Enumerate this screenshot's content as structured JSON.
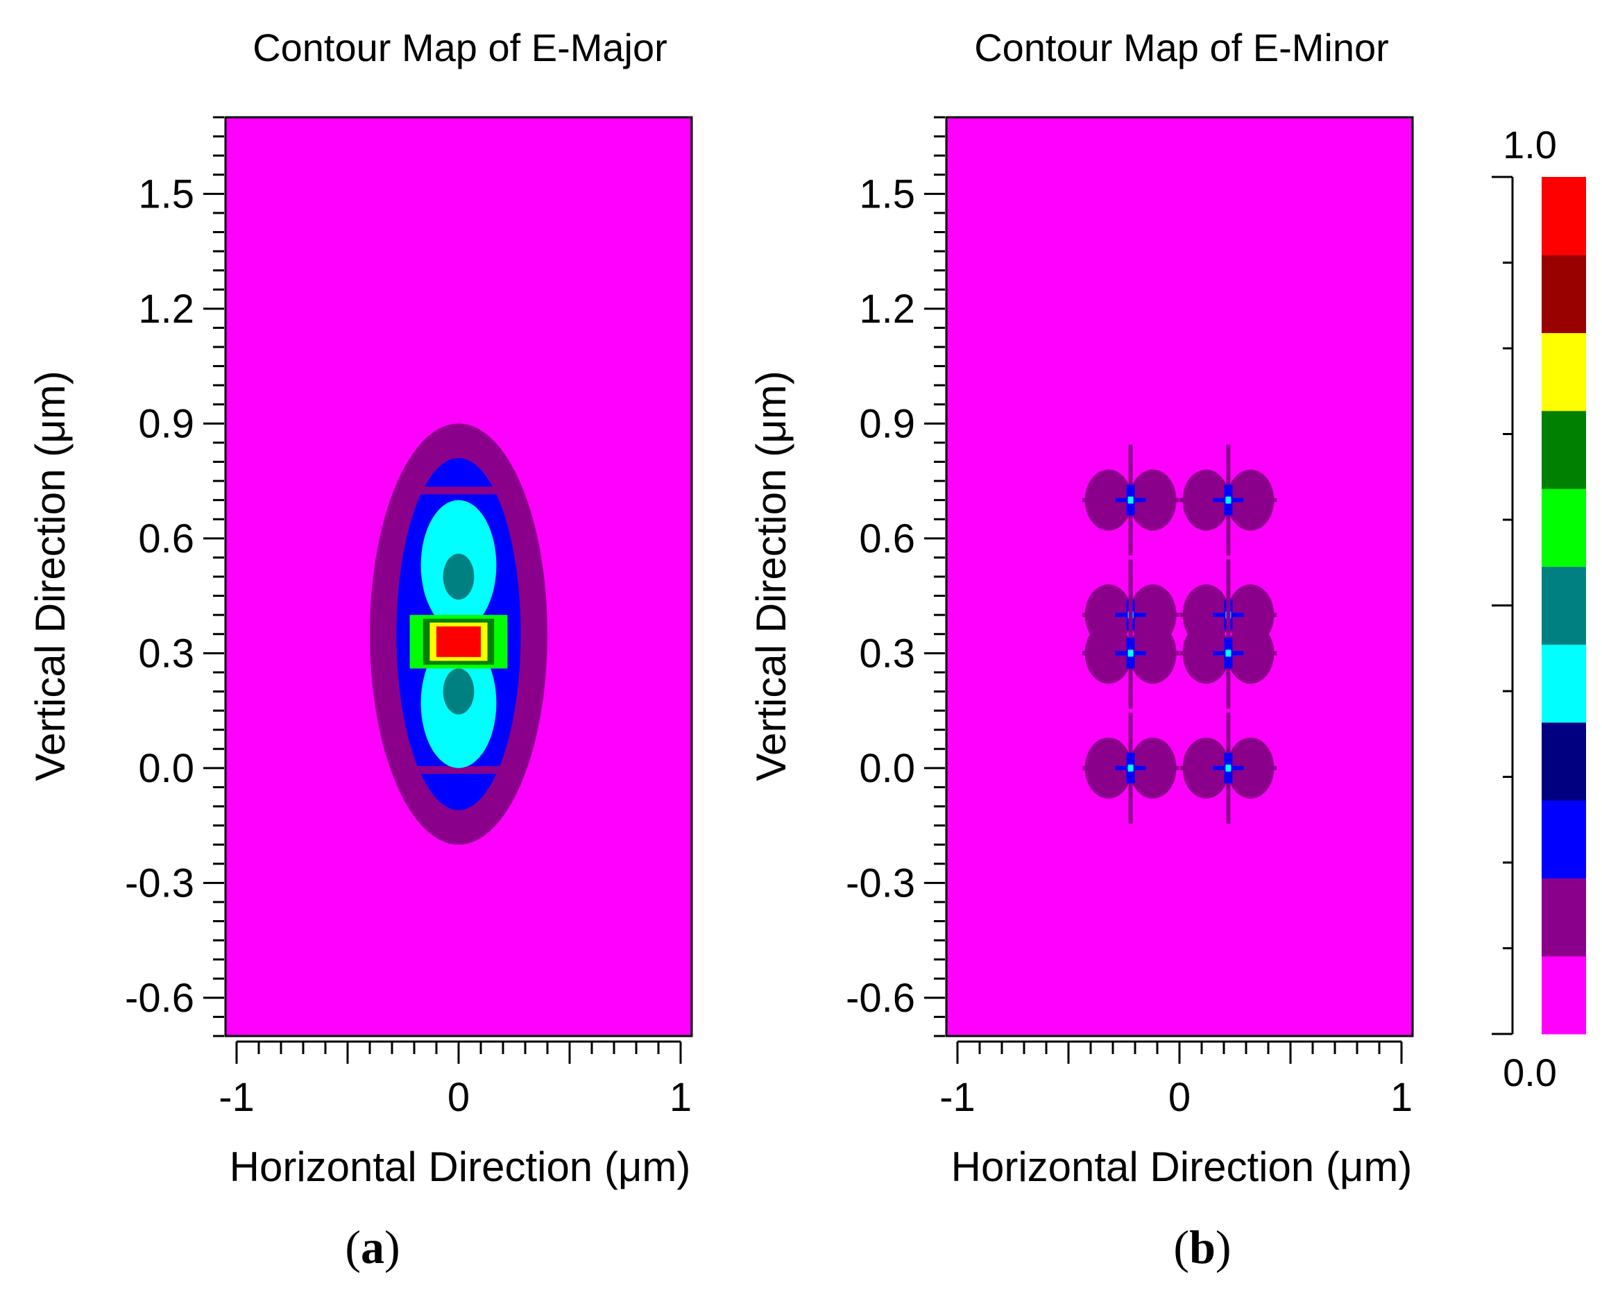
{
  "chart_data": [
    {
      "type": "heatmap",
      "title": "Contour Map of E-Major",
      "xlabel": "Horizontal Direction (μm)",
      "ylabel": "Vertical Direction (μm)",
      "panel_label": "a",
      "xlim": [
        -1.05,
        1.05
      ],
      "ylim": [
        -0.7,
        1.7
      ],
      "xticks": [
        "-1",
        "0",
        "1"
      ],
      "xtick_values": [
        -1,
        0,
        1
      ],
      "yticks": [
        "1.5",
        "1.2",
        "0.9",
        "0.6",
        "0.3",
        "0.0",
        "-0.3",
        "-0.6"
      ],
      "ytick_values": [
        1.5,
        1.2,
        0.9,
        0.6,
        0.3,
        0.0,
        -0.3,
        -0.6
      ],
      "background_level": 0,
      "regions": [
        {
          "level": 1,
          "shape": "ellipse",
          "cx": 0,
          "cy": 0.35,
          "rx": 0.4,
          "ry": 0.55
        },
        {
          "level": 2,
          "shape": "ellipse",
          "cx": 0,
          "cy": 0.35,
          "rx": 0.28,
          "ry": 0.46
        },
        {
          "level": 1,
          "shape": "rect",
          "x0": -0.25,
          "x1": 0.25,
          "y0": 0.715,
          "y1": 0.735
        },
        {
          "level": 1,
          "shape": "rect",
          "x0": -0.25,
          "x1": 0.25,
          "y0": -0.015,
          "y1": 0.005
        },
        {
          "level": 4,
          "shape": "ellipse",
          "cx": 0,
          "cy": 0.53,
          "rx": 0.17,
          "ry": 0.17
        },
        {
          "level": 4,
          "shape": "ellipse",
          "cx": 0,
          "cy": 0.17,
          "rx": 0.17,
          "ry": 0.17
        },
        {
          "level": 5,
          "shape": "ellipse",
          "cx": 0,
          "cy": 0.5,
          "rx": 0.07,
          "ry": 0.06
        },
        {
          "level": 5,
          "shape": "ellipse",
          "cx": 0,
          "cy": 0.2,
          "rx": 0.07,
          "ry": 0.06
        },
        {
          "level": 6,
          "shape": "rect",
          "x0": -0.22,
          "x1": 0.22,
          "y0": 0.26,
          "y1": 0.4
        },
        {
          "level": 7,
          "shape": "rect",
          "x0": -0.16,
          "x1": 0.16,
          "y0": 0.27,
          "y1": 0.39
        },
        {
          "level": 8,
          "shape": "rect",
          "x0": -0.13,
          "x1": 0.13,
          "y0": 0.28,
          "y1": 0.38
        },
        {
          "level": 10,
          "shape": "rect",
          "x0": -0.1,
          "x1": 0.1,
          "y0": 0.29,
          "y1": 0.37
        }
      ]
    },
    {
      "type": "heatmap",
      "title": "Contour Map of E-Minor",
      "xlabel": "Horizontal Direction (μm)",
      "ylabel": "Vertical Direction (μm)",
      "panel_label": "b",
      "xlim": [
        -1.05,
        1.05
      ],
      "ylim": [
        -0.7,
        1.7
      ],
      "xticks": [
        "-1",
        "0",
        "1"
      ],
      "xtick_values": [
        -1,
        0,
        1
      ],
      "yticks": [
        "1.5",
        "1.2",
        "0.9",
        "0.6",
        "0.3",
        "0.0",
        "-0.3",
        "-0.6"
      ],
      "ytick_values": [
        1.5,
        1.2,
        0.9,
        0.6,
        0.3,
        0.0,
        -0.3,
        -0.6
      ],
      "background_level": 0,
      "hotspot_level": 2,
      "hotspot_core_level": 4,
      "lobes": [
        {
          "cx": -0.22,
          "cy": 0.7
        },
        {
          "cx": 0.22,
          "cy": 0.7
        },
        {
          "cx": -0.22,
          "cy": 0.4
        },
        {
          "cx": 0.22,
          "cy": 0.4
        },
        {
          "cx": -0.22,
          "cy": 0.3
        },
        {
          "cx": 0.22,
          "cy": 0.3
        },
        {
          "cx": -0.22,
          "cy": 0.0
        },
        {
          "cx": 0.22,
          "cy": 0.0
        }
      ]
    }
  ],
  "colorbar": {
    "max_label": "1.0",
    "min_label": "0.0",
    "vmin": 0,
    "vmax": 1,
    "colors": [
      "#ff00ff",
      "#8b008b",
      "#0000ff",
      "#000080",
      "#00ffff",
      "#008080",
      "#00ff00",
      "#008000",
      "#ffff00",
      "#990000",
      "#ff0000"
    ]
  }
}
